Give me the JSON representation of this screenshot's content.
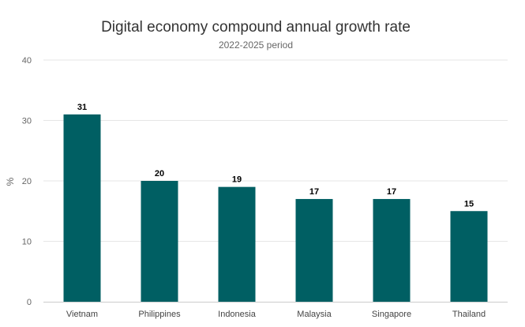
{
  "chart_data": {
    "type": "bar",
    "title": "Digital economy compound annual growth rate",
    "subtitle": "2022-2025 period",
    "xlabel": "",
    "ylabel": "%",
    "categories": [
      "Vietnam",
      "Philippines",
      "Indonesia",
      "Malaysia",
      "Singapore",
      "Thailand"
    ],
    "values": [
      31,
      20,
      19,
      17,
      17,
      15
    ],
    "ylim": [
      0,
      40
    ],
    "yticks": [
      0,
      10,
      20,
      30,
      40
    ],
    "grid": true,
    "legend": "none",
    "colors": {
      "bar": "#005f63",
      "grid": "#e6e6e6",
      "axis": "#cccccc",
      "tick_label": "#666666",
      "data_label": "#000000"
    }
  }
}
